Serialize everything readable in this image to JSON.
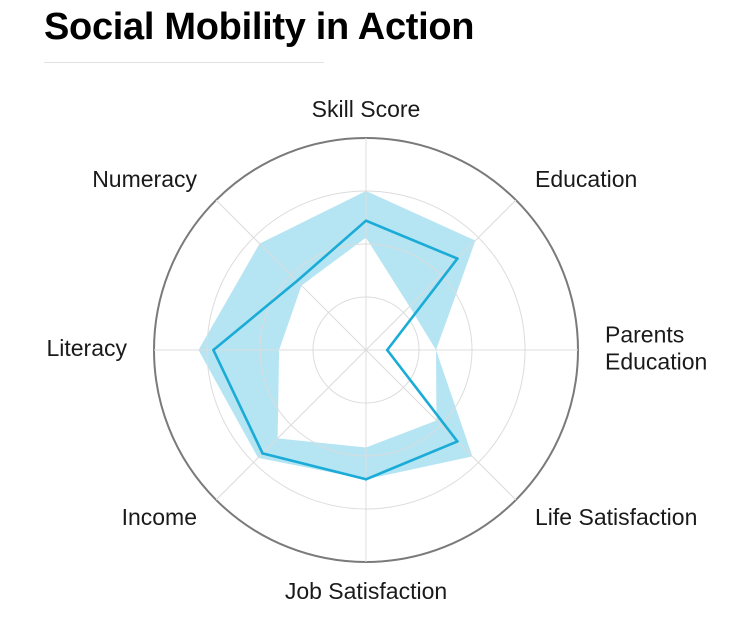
{
  "title": "Social Mobility in Action",
  "chart_data": {
    "type": "radar",
    "title": "Social Mobility in Action",
    "axes": [
      {
        "name": "skill-score",
        "label_lines": [
          "Skill Score"
        ]
      },
      {
        "name": "education",
        "label_lines": [
          "Education"
        ]
      },
      {
        "name": "parents-education",
        "label_lines": [
          "Parents",
          "Education"
        ]
      },
      {
        "name": "life-satisfaction",
        "label_lines": [
          "Life Satisfaction"
        ]
      },
      {
        "name": "job-satisfaction",
        "label_lines": [
          "Job Satisfaction"
        ]
      },
      {
        "name": "income",
        "label_lines": [
          "Income"
        ]
      },
      {
        "name": "literacy",
        "label_lines": [
          "Literacy"
        ]
      },
      {
        "name": "numeracy",
        "label_lines": [
          "Numeracy"
        ]
      }
    ],
    "range": [
      0,
      1
    ],
    "rings": [
      0.25,
      0.5,
      0.75,
      1.0
    ],
    "series_line": [
      0.61,
      0.61,
      0.1,
      0.61,
      0.61,
      0.69,
      0.72,
      0.46
    ],
    "band_lower": [
      0.53,
      0.29,
      0.33,
      0.47,
      0.46,
      0.59,
      0.41,
      0.43
    ],
    "band_upper": [
      0.75,
      0.73,
      0.33,
      0.71,
      0.61,
      0.72,
      0.79,
      0.71
    ],
    "colors": {
      "line": "#1aabd6",
      "band": "#a8dff1",
      "outer_ring": "#7a7a7a",
      "grid": "#dcdcdc"
    },
    "grid": true
  }
}
